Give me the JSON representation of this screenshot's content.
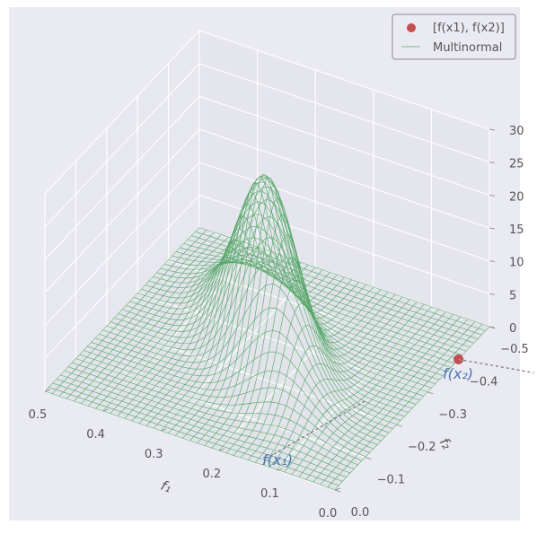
{
  "chart_data": {
    "type": "surface3d",
    "title": "",
    "xlabel": "f₁",
    "ylabel": "f₂",
    "zlabel": "",
    "xlim": [
      0.0,
      0.5
    ],
    "ylim": [
      0.0,
      -0.5
    ],
    "zlim": [
      0,
      30
    ],
    "x_ticks": [
      "0.0",
      "0.1",
      "0.2",
      "0.3",
      "0.4",
      "0.5"
    ],
    "y_ticks": [
      "0.0",
      "−0.1",
      "−0.2",
      "−0.3",
      "−0.4",
      "−0.5"
    ],
    "z_ticks": [
      "0",
      "5",
      "10",
      "15",
      "20",
      "25",
      "30"
    ],
    "grid": true,
    "legend_position": "top-right",
    "legend": [
      {
        "label": "[f(x1), f(x2)]",
        "marker": "point",
        "color": "#c44e52"
      },
      {
        "label": "Multinormal",
        "marker": "line",
        "color": "#55a868"
      }
    ],
    "surface": {
      "name": "Multinormal",
      "color": "#55a868",
      "mean": [
        0.25,
        -0.25
      ],
      "std": [
        0.075,
        0.075
      ],
      "correlation": -0.7,
      "peak_z": 27.5,
      "grid_resolution": 40
    },
    "point": {
      "name": "[f(x1), f(x2)]",
      "x": 0.0,
      "y": -0.4,
      "z": 0,
      "color": "#c44e52"
    },
    "annotations": [
      {
        "text": "f(x₁)"
      },
      {
        "text": "f(x₂)"
      }
    ],
    "colors": {
      "panel": "#eaeaf2",
      "grid": "#ffffff",
      "surface": "#55a868",
      "point": "#c44e52",
      "annotation": "#4c72b0"
    }
  }
}
